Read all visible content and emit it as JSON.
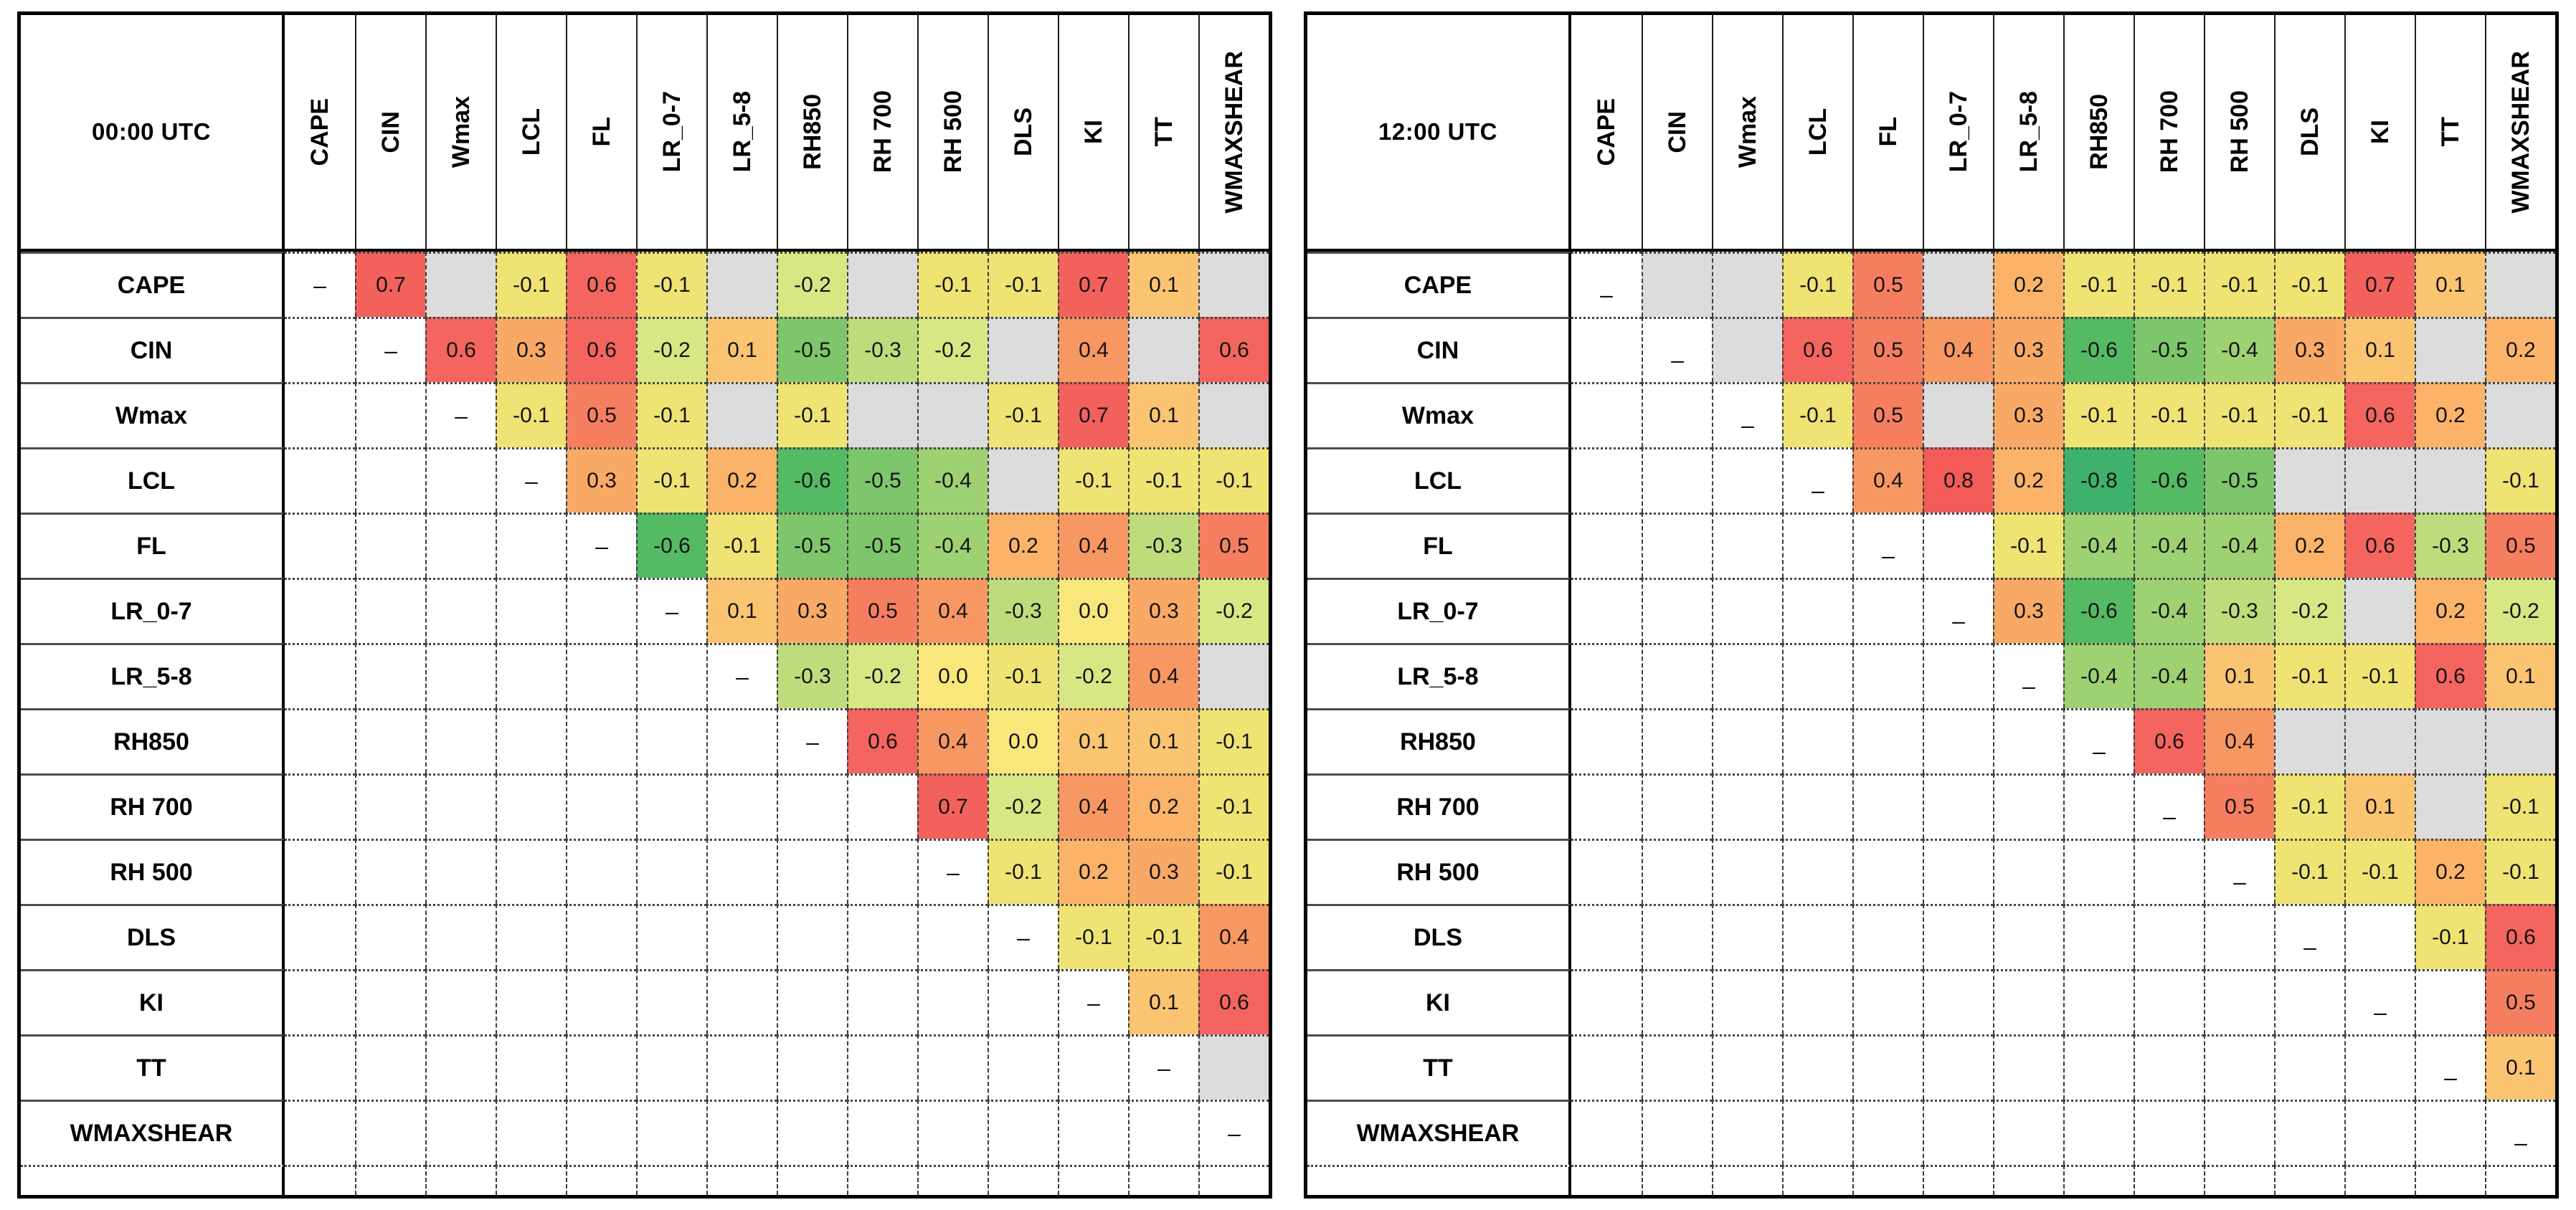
{
  "figure": {
    "description": "Two upper-triangular correlation matrices of convective parameters",
    "diag_symbol": "–",
    "masked_color": "#dcdcdc",
    "palette": {
      "0.8": "#f25b58",
      "0.7": "#f3615c",
      "0.6": "#f3655e",
      "0.5": "#f67e60",
      "0.4": "#f79762",
      "0.3": "#f9a966",
      "0.2": "#fab369",
      "0.1": "#fac471",
      "0.0": "#f8e77b",
      "-0.1": "#efe374",
      "-0.2": "#d8e684",
      "-0.3": "#bfdc7c",
      "-0.4": "#9dd172",
      "-0.5": "#7ec66c",
      "-0.6": "#54ba64",
      "-0.8": "#3eb26c"
    }
  },
  "chart_data": [
    {
      "type": "heatmap",
      "title": "00:00 UTC",
      "x_categories": [
        "CAPE",
        "CIN",
        "Wmax",
        "LCL",
        "FL",
        "LR_0-7",
        "LR_5-8",
        "RH850",
        "RH 700",
        "RH 500",
        "DLS",
        "KI",
        "TT",
        "WMAXSHEAR"
      ],
      "y_categories": [
        "CAPE",
        "CIN",
        "Wmax",
        "LCL",
        "FL",
        "LR_0-7",
        "LR_5-8",
        "RH850",
        "RH 700",
        "RH 500",
        "DLS",
        "KI",
        "TT",
        "WMAXSHEAR"
      ],
      "legend_position": "none",
      "grid": "dashed",
      "value_range": [
        -1,
        1
      ],
      "values": [
        [
          "diag",
          0.7,
          "ns",
          -0.1,
          0.6,
          -0.1,
          "ns",
          -0.2,
          "ns",
          -0.1,
          -0.1,
          0.7,
          0.1,
          "ns"
        ],
        [
          null,
          "diag",
          0.6,
          0.3,
          0.6,
          -0.2,
          0.1,
          -0.5,
          -0.3,
          -0.2,
          "ns",
          0.4,
          "ns",
          0.6
        ],
        [
          null,
          null,
          "diag",
          -0.1,
          0.5,
          -0.1,
          "ns",
          -0.1,
          "ns",
          "ns",
          -0.1,
          0.7,
          0.1,
          "ns"
        ],
        [
          null,
          null,
          null,
          "diag",
          0.3,
          -0.1,
          0.2,
          -0.6,
          -0.5,
          -0.4,
          "ns",
          -0.1,
          -0.1,
          -0.1
        ],
        [
          null,
          null,
          null,
          null,
          "diag",
          -0.6,
          -0.1,
          -0.5,
          -0.5,
          -0.4,
          0.2,
          0.4,
          -0.3,
          0.5
        ],
        [
          null,
          null,
          null,
          null,
          null,
          "diag",
          0.1,
          0.3,
          0.5,
          0.4,
          -0.3,
          0.0,
          0.3,
          -0.2
        ],
        [
          null,
          null,
          null,
          null,
          null,
          null,
          "diag",
          -0.3,
          -0.2,
          0.0,
          -0.1,
          -0.2,
          0.4,
          "ns"
        ],
        [
          null,
          null,
          null,
          null,
          null,
          null,
          null,
          "diag",
          0.6,
          0.4,
          0.0,
          0.1,
          0.1,
          -0.1
        ],
        [
          null,
          null,
          null,
          null,
          null,
          null,
          null,
          null,
          null,
          0.7,
          -0.2,
          0.4,
          0.2,
          -0.1
        ],
        [
          null,
          null,
          null,
          null,
          null,
          null,
          null,
          null,
          null,
          "diag",
          -0.1,
          0.2,
          0.3,
          -0.1
        ],
        [
          null,
          null,
          null,
          null,
          null,
          null,
          null,
          null,
          null,
          null,
          "diag",
          -0.1,
          -0.1,
          0.4
        ],
        [
          null,
          null,
          null,
          null,
          null,
          null,
          null,
          null,
          null,
          null,
          null,
          "diag",
          0.1,
          0.6
        ],
        [
          null,
          null,
          null,
          null,
          null,
          null,
          null,
          null,
          null,
          null,
          null,
          null,
          "diag",
          "ns"
        ],
        [
          null,
          null,
          null,
          null,
          null,
          null,
          null,
          null,
          null,
          null,
          null,
          null,
          null,
          "diag"
        ]
      ]
    },
    {
      "type": "heatmap",
      "title": "12:00 UTC",
      "x_categories": [
        "CAPE",
        "CIN",
        "Wmax",
        "LCL",
        "FL",
        "LR_0-7",
        "LR_5-8",
        "RH850",
        "RH 700",
        "RH 500",
        "DLS",
        "KI",
        "TT",
        "WMAXSHEAR"
      ],
      "y_categories": [
        "CAPE",
        "CIN",
        "Wmax",
        "LCL",
        "FL",
        "LR_0-7",
        "LR_5-8",
        "RH850",
        "RH 700",
        "RH 500",
        "DLS",
        "KI",
        "TT",
        "WMAXSHEAR"
      ],
      "legend_position": "none",
      "grid": "dashed",
      "value_range": [
        -1,
        1
      ],
      "values": [
        [
          "diag",
          "ns",
          "ns",
          -0.1,
          0.5,
          "ns",
          0.2,
          -0.1,
          -0.1,
          -0.1,
          -0.1,
          0.7,
          0.1,
          "ns"
        ],
        [
          null,
          "diag",
          "ns",
          0.6,
          0.5,
          0.4,
          0.3,
          -0.6,
          -0.5,
          -0.4,
          0.3,
          0.1,
          "ns",
          0.2
        ],
        [
          null,
          null,
          "diag",
          -0.1,
          0.5,
          "ns",
          0.3,
          -0.1,
          -0.1,
          -0.1,
          -0.1,
          0.6,
          0.2,
          "ns"
        ],
        [
          null,
          null,
          null,
          "diag",
          0.4,
          0.8,
          0.2,
          -0.8,
          -0.6,
          -0.5,
          "ns",
          "ns",
          "ns",
          -0.1
        ],
        [
          null,
          null,
          null,
          null,
          "diag",
          null,
          -0.1,
          -0.4,
          -0.4,
          -0.4,
          0.2,
          0.6,
          -0.3,
          0.5
        ],
        [
          null,
          null,
          null,
          null,
          null,
          "diag",
          0.3,
          -0.6,
          -0.4,
          -0.3,
          -0.2,
          "ns",
          0.2,
          -0.2
        ],
        [
          null,
          null,
          null,
          null,
          null,
          null,
          "diag",
          -0.4,
          -0.4,
          0.1,
          -0.1,
          -0.1,
          0.6,
          0.1
        ],
        [
          null,
          null,
          null,
          null,
          null,
          null,
          null,
          "diag",
          0.6,
          0.4,
          "ns",
          "ns",
          "ns",
          "ns"
        ],
        [
          null,
          null,
          null,
          null,
          null,
          null,
          null,
          null,
          "diag",
          0.5,
          -0.1,
          0.1,
          "ns",
          -0.1
        ],
        [
          null,
          null,
          null,
          null,
          null,
          null,
          null,
          null,
          null,
          "diag",
          -0.1,
          -0.1,
          0.2,
          -0.1
        ],
        [
          null,
          null,
          null,
          null,
          null,
          null,
          null,
          null,
          null,
          null,
          "diag",
          null,
          -0.1,
          0.6
        ],
        [
          null,
          null,
          null,
          null,
          null,
          null,
          null,
          null,
          null,
          null,
          null,
          "diag",
          null,
          0.5
        ],
        [
          null,
          null,
          null,
          null,
          null,
          null,
          null,
          null,
          null,
          null,
          null,
          null,
          "diag",
          0.1
        ],
        [
          null,
          null,
          null,
          null,
          null,
          null,
          null,
          null,
          null,
          null,
          null,
          null,
          null,
          "diag"
        ]
      ]
    }
  ]
}
